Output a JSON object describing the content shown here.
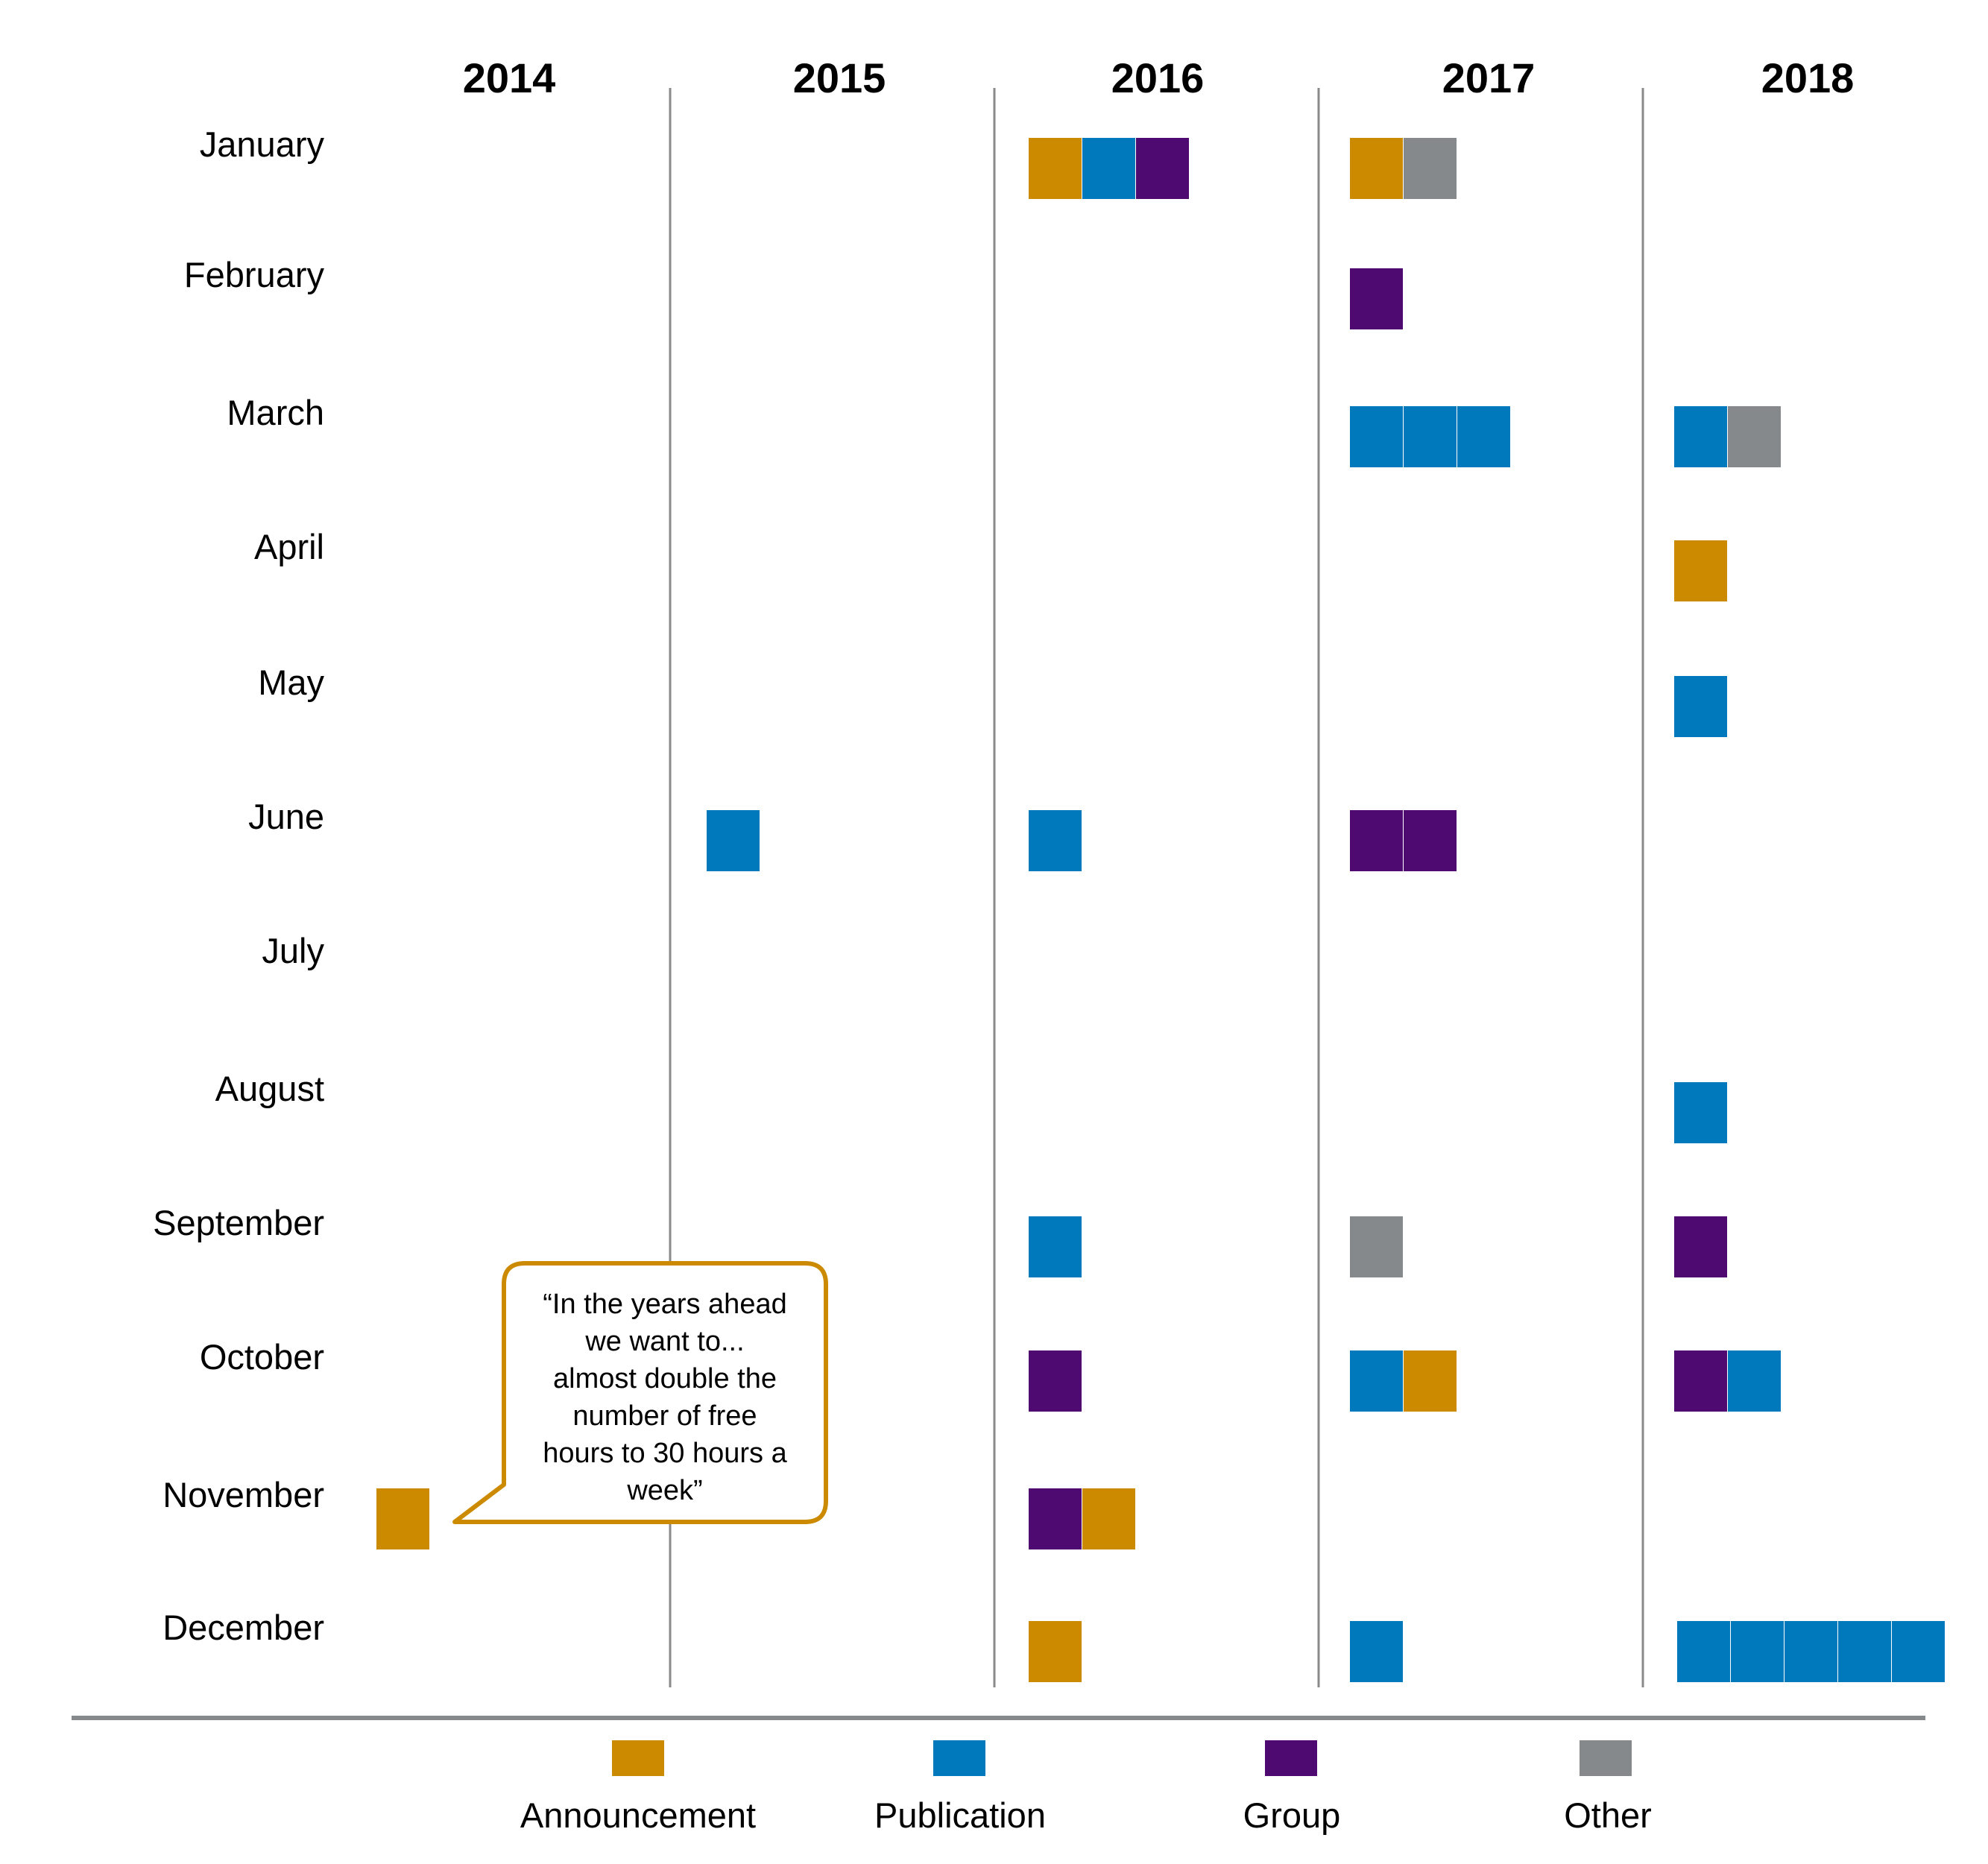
{
  "chart_data": {
    "type": "timeline",
    "years": [
      "2014",
      "2015",
      "2016",
      "2017",
      "2018"
    ],
    "months": [
      "January",
      "February",
      "March",
      "April",
      "May",
      "June",
      "July",
      "August",
      "September",
      "October",
      "November",
      "December"
    ],
    "categories": [
      {
        "name": "Announcement",
        "color": "#CC8A00"
      },
      {
        "name": "Publication",
        "color": "#0079BC"
      },
      {
        "name": "Group",
        "color": "#4E0A70"
      },
      {
        "name": "Other",
        "color": "#86898C"
      }
    ],
    "events": [
      {
        "year": "2014",
        "month": "November",
        "items": [
          "Announcement"
        ]
      },
      {
        "year": "2015",
        "month": "June",
        "items": [
          "Publication"
        ]
      },
      {
        "year": "2016",
        "month": "January",
        "items": [
          "Announcement",
          "Publication",
          "Group"
        ]
      },
      {
        "year": "2016",
        "month": "June",
        "items": [
          "Publication"
        ]
      },
      {
        "year": "2016",
        "month": "September",
        "items": [
          "Publication"
        ]
      },
      {
        "year": "2016",
        "month": "October",
        "items": [
          "Group"
        ]
      },
      {
        "year": "2016",
        "month": "November",
        "items": [
          "Group",
          "Announcement"
        ]
      },
      {
        "year": "2016",
        "month": "December",
        "items": [
          "Announcement"
        ]
      },
      {
        "year": "2017",
        "month": "January",
        "items": [
          "Announcement",
          "Other"
        ]
      },
      {
        "year": "2017",
        "month": "February",
        "items": [
          "Group"
        ]
      },
      {
        "year": "2017",
        "month": "March",
        "items": [
          "Publication",
          "Publication",
          "Publication"
        ]
      },
      {
        "year": "2017",
        "month": "June",
        "items": [
          "Group",
          "Group"
        ]
      },
      {
        "year": "2017",
        "month": "September",
        "items": [
          "Other"
        ]
      },
      {
        "year": "2017",
        "month": "October",
        "items": [
          "Publication",
          "Announcement"
        ]
      },
      {
        "year": "2017",
        "month": "December",
        "items": [
          "Publication"
        ]
      },
      {
        "year": "2018",
        "month": "March",
        "items": [
          "Publication",
          "Other"
        ]
      },
      {
        "year": "2018",
        "month": "April",
        "items": [
          "Announcement"
        ]
      },
      {
        "year": "2018",
        "month": "May",
        "items": [
          "Publication"
        ]
      },
      {
        "year": "2018",
        "month": "August",
        "items": [
          "Publication"
        ]
      },
      {
        "year": "2018",
        "month": "September",
        "items": [
          "Group"
        ]
      },
      {
        "year": "2018",
        "month": "October",
        "items": [
          "Group",
          "Publication"
        ]
      },
      {
        "year": "2018",
        "month": "December",
        "items": [
          "Publication",
          "Publication",
          "Publication",
          "Publication",
          "Publication"
        ]
      }
    ],
    "annotation": {
      "year": "2014",
      "month": "November",
      "lines": [
        "“In the years ahead",
        "we want to...",
        "almost double the",
        "number of free",
        "hours to 30 hours a",
        "week”"
      ]
    },
    "legend_position": "bottom",
    "grid": false
  }
}
